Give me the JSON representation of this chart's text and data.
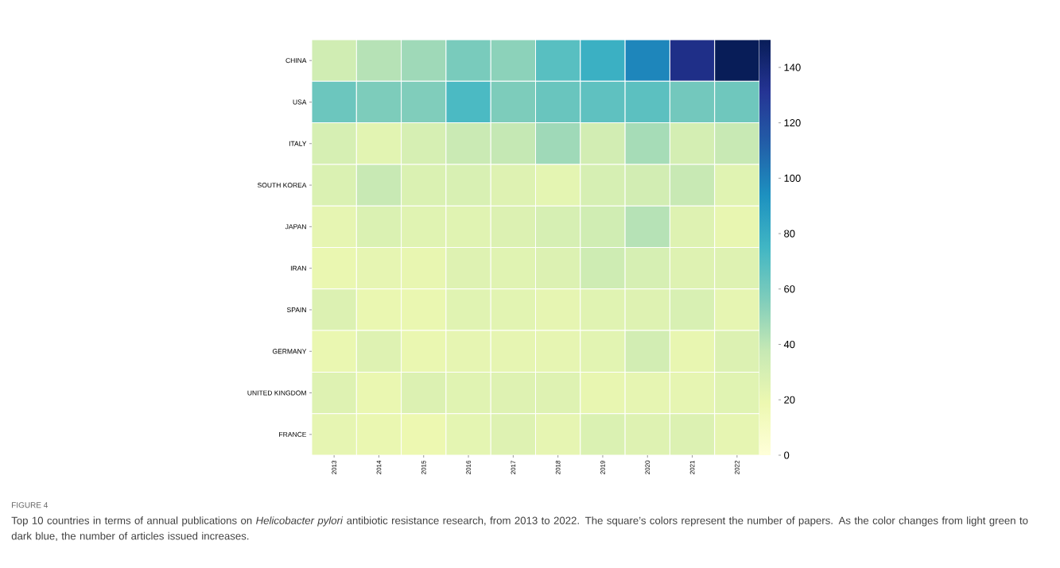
{
  "chart_data": {
    "type": "heatmap",
    "categories": [
      "2013",
      "2014",
      "2015",
      "2016",
      "2017",
      "2018",
      "2019",
      "2020",
      "2021",
      "2022"
    ],
    "y_categories": [
      "CHINA",
      "USA",
      "ITALY",
      "SOUTH KOREA",
      "JAPAN",
      "IRAN",
      "SPAIN",
      "GERMANY",
      "UNITED KINGDOM",
      "FRANCE"
    ],
    "cells": [
      [
        33,
        42,
        48,
        58,
        53,
        68,
        78,
        98,
        135,
        150
      ],
      [
        62,
        57,
        56,
        72,
        57,
        63,
        66,
        67,
        60,
        61
      ],
      [
        30,
        24,
        30,
        36,
        38,
        48,
        32,
        46,
        31,
        37
      ],
      [
        28,
        37,
        28,
        29,
        26,
        23,
        30,
        32,
        37,
        25
      ],
      [
        22,
        28,
        25,
        25,
        27,
        30,
        33,
        42,
        26,
        21
      ],
      [
        20,
        22,
        21,
        26,
        25,
        27,
        34,
        30,
        26,
        26
      ],
      [
        27,
        20,
        20,
        25,
        24,
        22,
        25,
        26,
        29,
        22
      ],
      [
        20,
        26,
        20,
        22,
        22,
        22,
        24,
        32,
        21,
        27
      ],
      [
        26,
        20,
        27,
        25,
        26,
        26,
        21,
        22,
        22,
        25
      ],
      [
        22,
        20,
        19,
        23,
        26,
        22,
        28,
        26,
        27,
        22
      ]
    ],
    "clim": [
      0,
      150
    ],
    "cticks": [
      0,
      20,
      40,
      60,
      80,
      100,
      120,
      140
    ],
    "annotations": [
      "FIGURE 4",
      "Top 10 countries in terms of annual publications on *Helicobacter pylori* antibiotic resistance research, from 2013 to 2022. The square’s colors represent the number of papers. As the color changes from light green to dark blue, the number of articles issued increases."
    ]
  }
}
